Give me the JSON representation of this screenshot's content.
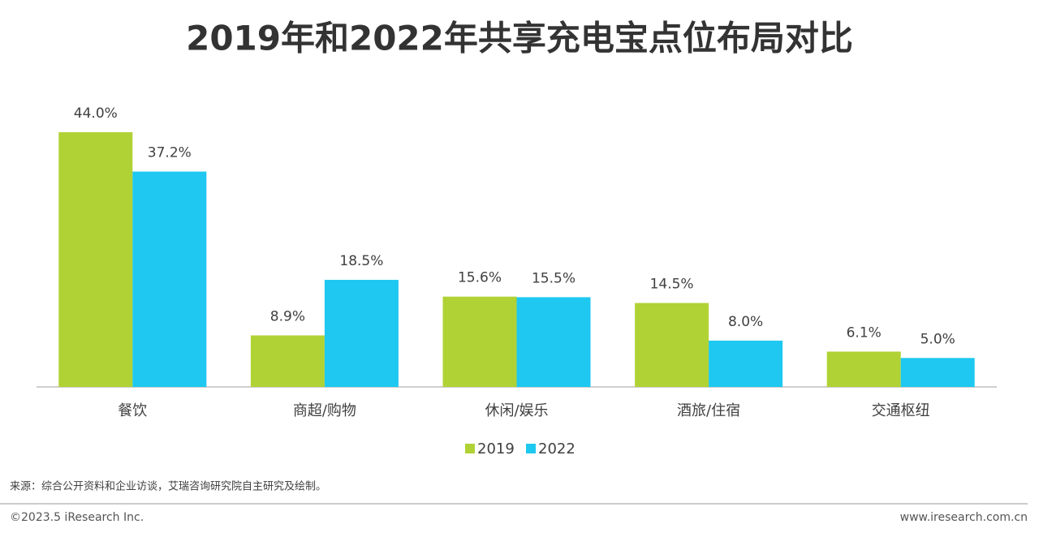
{
  "chart_data": {
    "type": "bar",
    "title": "2019年和2022年共享充电宝点位布局对比",
    "categories": [
      "餐饮",
      "商超/购物",
      "休闲/娱乐",
      "酒旅/住宿",
      "交通枢纽"
    ],
    "series": [
      {
        "name": "2019",
        "color": "#b0d235",
        "values": [
          44.0,
          8.9,
          15.6,
          14.5,
          6.1
        ],
        "value_labels": [
          "44.0%",
          "8.9%",
          "15.6%",
          "14.5%",
          "6.1%"
        ]
      },
      {
        "name": "2022",
        "color": "#1ec8f0",
        "values": [
          37.2,
          18.5,
          15.5,
          8.0,
          5.0
        ],
        "value_labels": [
          "37.2%",
          "18.5%",
          "15.5%",
          "8.0%",
          "5.0%"
        ]
      }
    ],
    "legend": "bottom"
  },
  "source": "来源：综合公开资料和企业访谈，艾瑞咨询研究院自主研究及绘制。",
  "footer": {
    "copyright": "©2023.5 iResearch Inc.",
    "website": "www.iresearch.com.cn"
  }
}
